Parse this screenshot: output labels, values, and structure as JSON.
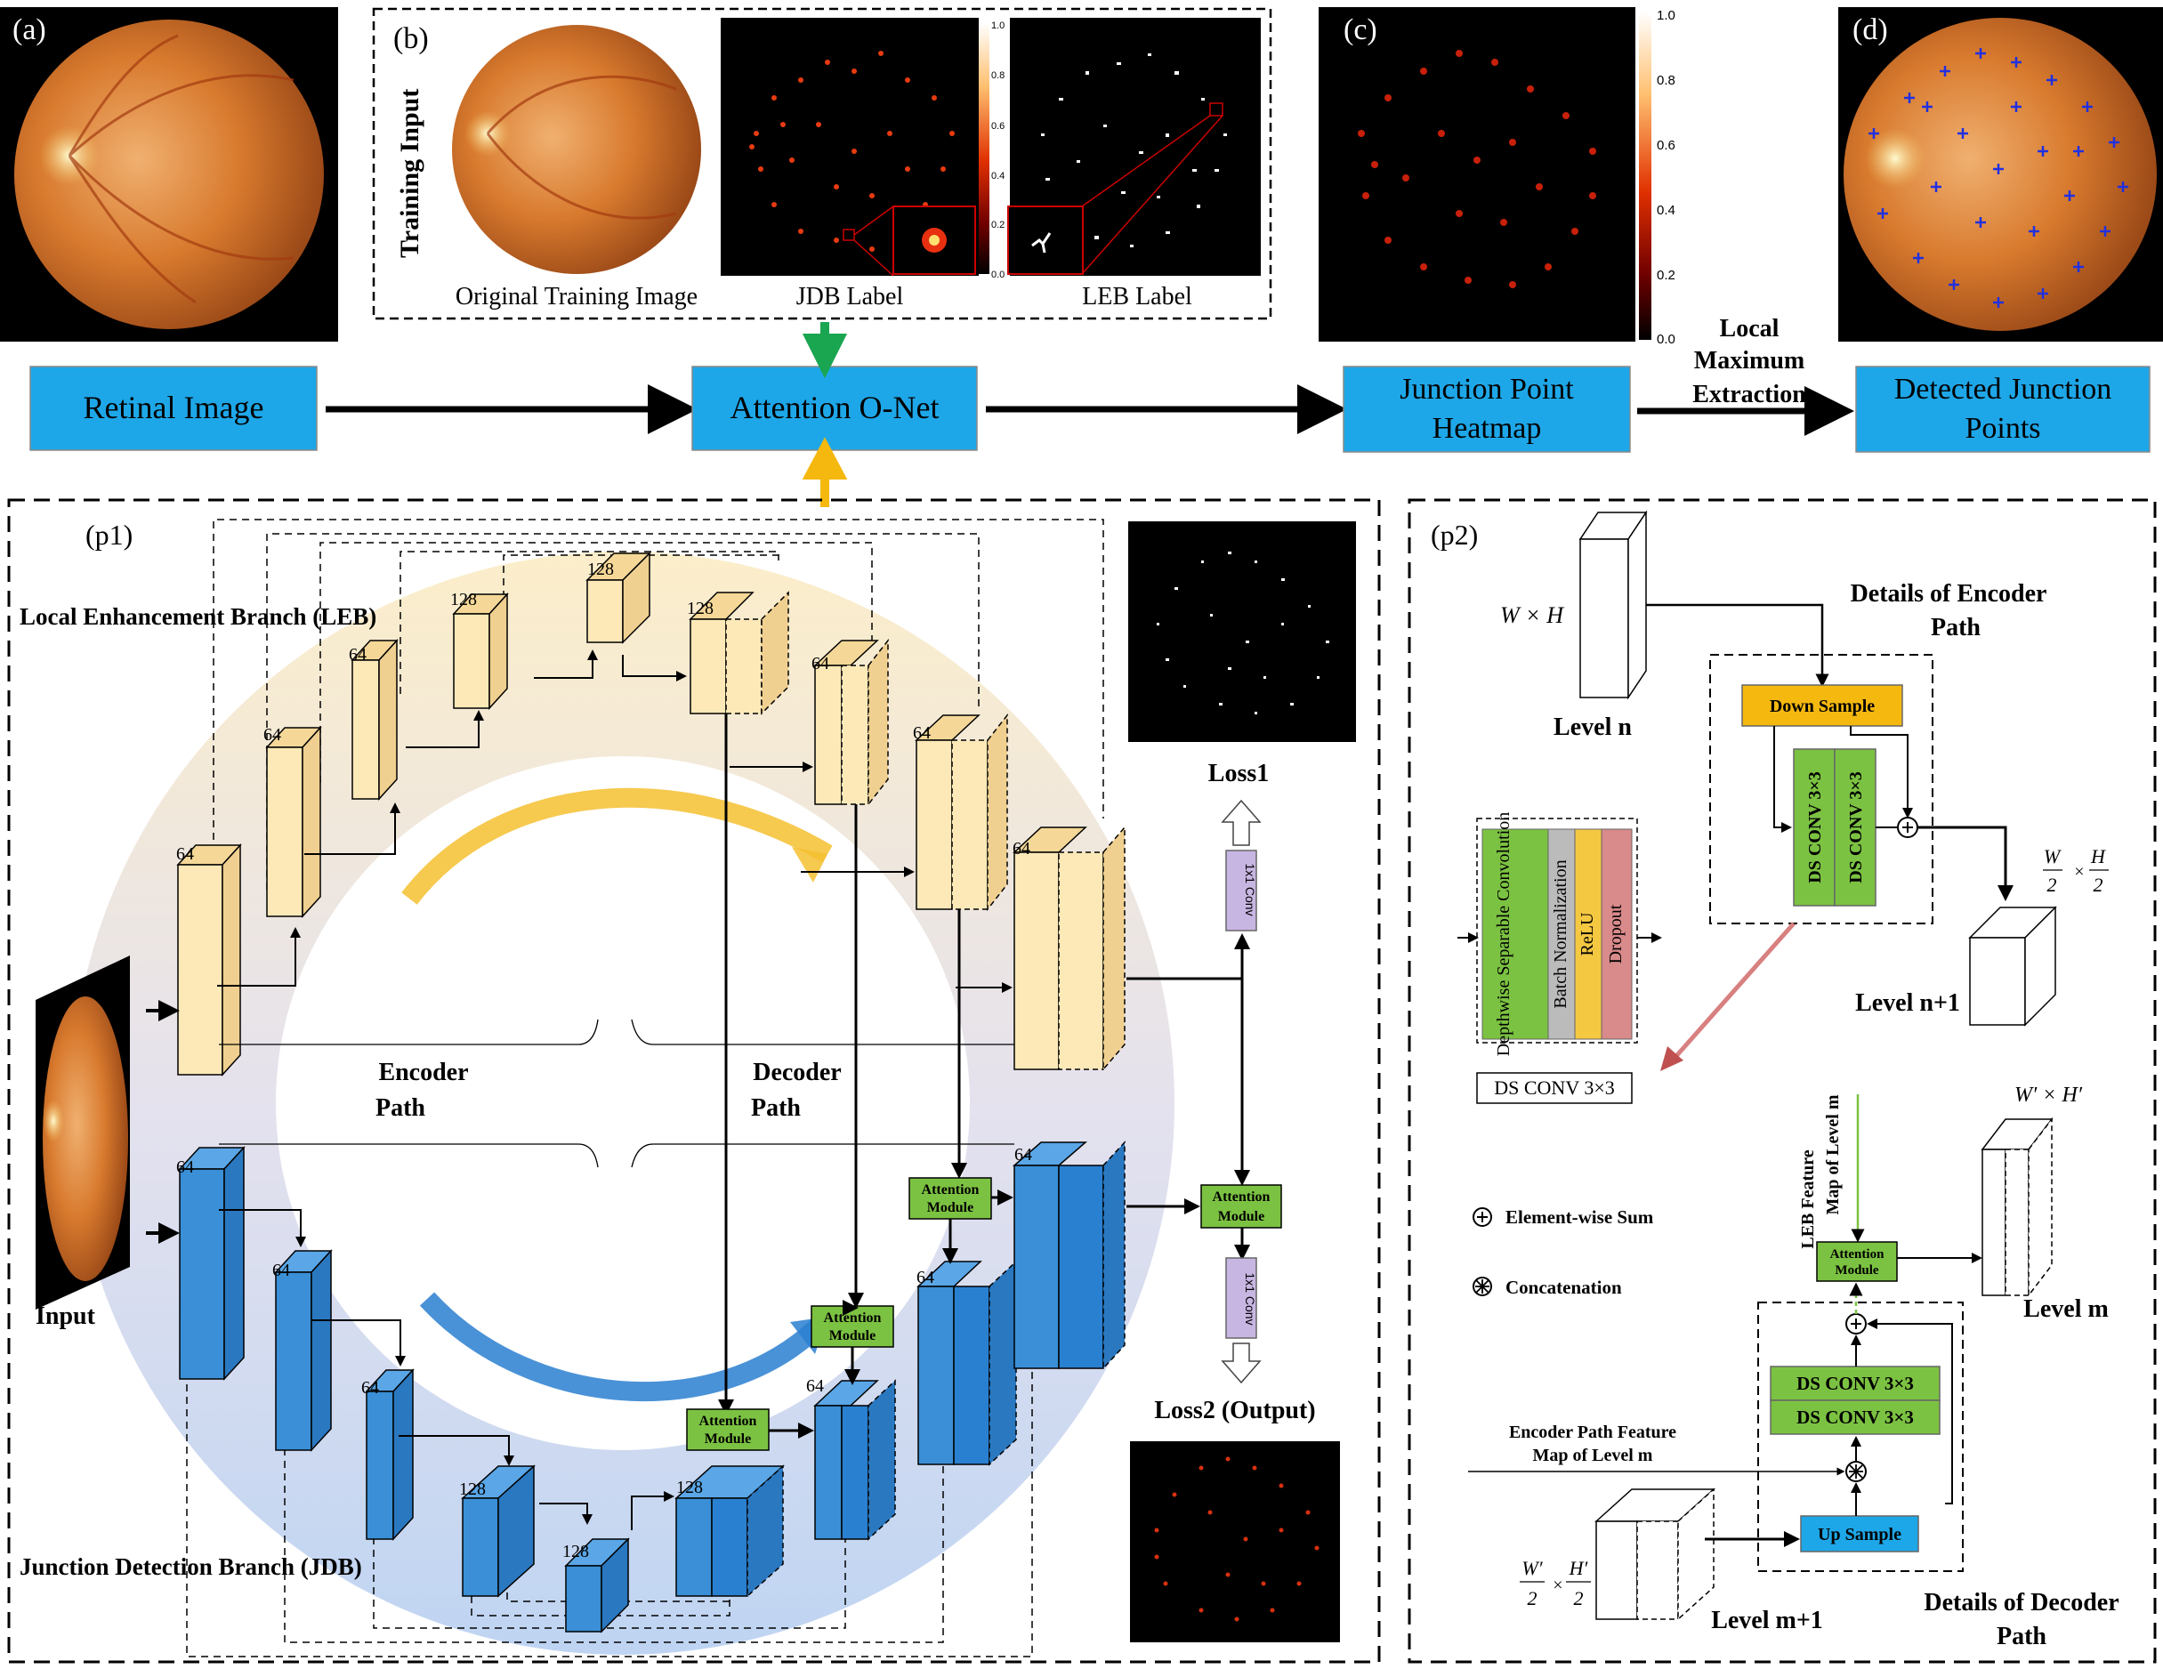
{
  "panels": {
    "a": "(a)",
    "b": "(b)",
    "c": "(c)",
    "d": "(d)",
    "p1": "(p1)",
    "p2": "(p2)"
  },
  "top_row": {
    "training_input": "Training Input",
    "original_image_label": "Original Training Image",
    "jdb_label": "JDB Label",
    "leb_label": "LEB Label",
    "colorbar_ticks": [
      "1.0",
      "0.8",
      "0.6",
      "0.4",
      "0.2",
      "0.0"
    ],
    "colorbar_ticks_b": [
      "1.0",
      "0.8",
      "0.6",
      "0.4",
      "0.2",
      "0.0"
    ]
  },
  "pipeline": {
    "retinal_image": "Retinal Image",
    "attention_onet": "Attention O-Net",
    "heatmap_line1": "Junction Point",
    "heatmap_line2": "Heatmap",
    "lme_line1": "Local",
    "lme_line2": "Maximum",
    "lme_line3": "Extraction",
    "detected_line1": "Detected Junction",
    "detected_line2": "Points"
  },
  "p1": {
    "leb_title": "Local Enhancement Branch (LEB)",
    "jdb_title": "Junction Detection Branch (JDB)",
    "input": "Input",
    "encoder_line1": "Encoder",
    "encoder_line2": "Path",
    "decoder_line1": "Decoder",
    "decoder_line2": "Path",
    "loss1": "Loss1",
    "loss2": "Loss2 (Output)",
    "conv1x1": "1x1 Conv",
    "attn_line1": "Attention",
    "attn_line2": "Module",
    "channels": {
      "c64": "64",
      "c128": "128"
    }
  },
  "p2": {
    "wxh": "W × H",
    "level_n": "Level  n",
    "level_n1": "Level  n+1",
    "encoder_details_line1": "Details of Encoder",
    "encoder_details_line2": "Path",
    "down_sample": "Down Sample",
    "ds_conv_vertical": "DS CONV 3×3",
    "ds_conv": "DS CONV 3×3",
    "ds_components": [
      "Depthwise Separable Convolution",
      "Batch Normalization",
      "ReLU",
      "Dropout"
    ],
    "half_w": "W",
    "half_h": "H",
    "half_den": "2",
    "leb_feature_line1": "LEB Feature",
    "leb_feature_line2": "Map of Level m",
    "wh_prime": "W′ × H′",
    "level_m": "Level  m",
    "level_m1": "Level  m+1",
    "element_wise_sum": "Element-wise Sum",
    "concatenation": "Concatenation",
    "encoder_feature_line1": "Encoder Path Feature",
    "encoder_feature_line2": "Map of Level m",
    "up_sample": "Up Sample",
    "decoder_details_line1": "Details of Decoder",
    "decoder_details_line2": "Path",
    "wp": "W′",
    "hp": "H′"
  },
  "colors": {
    "blue_box": "#1ea7e8",
    "green": "#7cc242",
    "orange": "#f5b80f",
    "leb_block": "#fde9b8",
    "jdb_block": "#3a8fd6"
  }
}
